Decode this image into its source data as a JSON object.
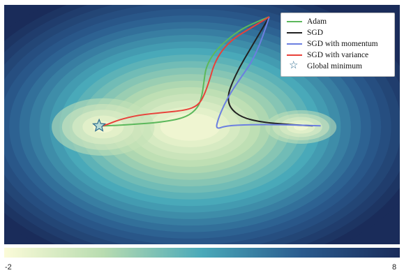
{
  "chart_data": {
    "type": "line",
    "title": "",
    "xlabel": "",
    "ylabel": "",
    "background": "contour",
    "legend_position": "top-right",
    "colorbar": {
      "min_label": "-2",
      "max_label": "8",
      "orientation": "horizontal",
      "colors": [
        "#fbfbd8",
        "#b8dcb0",
        "#49a9b9",
        "#2a5b8e",
        "#1a2c5a"
      ]
    },
    "series": [
      {
        "name": "Adam",
        "color": "#5cb85c",
        "points": [
          [
            0.67,
            0.05
          ],
          [
            0.64,
            0.07
          ],
          [
            0.6,
            0.1
          ],
          [
            0.56,
            0.15
          ],
          [
            0.53,
            0.2
          ],
          [
            0.51,
            0.26
          ],
          [
            0.505,
            0.32
          ],
          [
            0.5,
            0.38
          ],
          [
            0.49,
            0.43
          ],
          [
            0.46,
            0.47
          ],
          [
            0.4,
            0.49
          ],
          [
            0.32,
            0.5
          ],
          [
            0.26,
            0.505
          ],
          [
            0.24,
            0.505
          ]
        ]
      },
      {
        "name": "SGD",
        "color": "#222222",
        "points": [
          [
            0.67,
            0.05
          ],
          [
            0.645,
            0.12
          ],
          [
            0.62,
            0.19
          ],
          [
            0.595,
            0.26
          ],
          [
            0.575,
            0.33
          ],
          [
            0.565,
            0.38
          ],
          [
            0.57,
            0.43
          ],
          [
            0.6,
            0.47
          ],
          [
            0.65,
            0.49
          ],
          [
            0.72,
            0.5
          ],
          [
            0.78,
            0.505
          ]
        ]
      },
      {
        "name": "SGD with momentum",
        "color": "#6b7fe0",
        "points": [
          [
            0.67,
            0.05
          ],
          [
            0.66,
            0.1
          ],
          [
            0.645,
            0.17
          ],
          [
            0.625,
            0.24
          ],
          [
            0.6,
            0.3
          ],
          [
            0.575,
            0.36
          ],
          [
            0.555,
            0.42
          ],
          [
            0.54,
            0.48
          ],
          [
            0.535,
            0.52
          ],
          [
            0.56,
            0.505
          ],
          [
            0.62,
            0.5
          ],
          [
            0.7,
            0.5
          ],
          [
            0.8,
            0.505
          ]
        ]
      },
      {
        "name": "SGD with variance",
        "color": "#e8413a",
        "points": [
          [
            0.67,
            0.05
          ],
          [
            0.62,
            0.1
          ],
          [
            0.58,
            0.14
          ],
          [
            0.55,
            0.19
          ],
          [
            0.53,
            0.25
          ],
          [
            0.52,
            0.31
          ],
          [
            0.505,
            0.38
          ],
          [
            0.49,
            0.42
          ],
          [
            0.46,
            0.44
          ],
          [
            0.4,
            0.45
          ],
          [
            0.34,
            0.46
          ],
          [
            0.29,
            0.48
          ],
          [
            0.26,
            0.5
          ],
          [
            0.24,
            0.51
          ]
        ]
      }
    ],
    "markers": [
      {
        "name": "Global minimum",
        "symbol": "star",
        "color": "#2a6a8e",
        "fill": "#b8dcd4",
        "x": 0.24,
        "y": 0.505
      }
    ],
    "x_range": [
      0,
      1
    ],
    "y_range": [
      0,
      1
    ]
  }
}
